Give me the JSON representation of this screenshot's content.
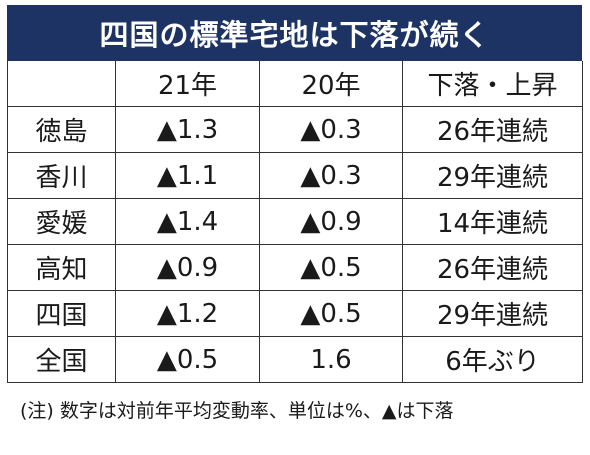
{
  "chart_data": {
    "type": "table",
    "title": "四国の標準宅地は下落が続く",
    "columns": [
      "",
      "21年",
      "20年",
      "下落・上昇"
    ],
    "rows": [
      {
        "region": "徳島",
        "y21": "▲1.3",
        "y20": "▲0.3",
        "trend": "26年連続"
      },
      {
        "region": "香川",
        "y21": "▲1.1",
        "y20": "▲0.3",
        "trend": "29年連続"
      },
      {
        "region": "愛媛",
        "y21": "▲1.4",
        "y20": "▲0.9",
        "trend": "14年連続"
      },
      {
        "region": "高知",
        "y21": "▲0.9",
        "y20": "▲0.5",
        "trend": "26年連続"
      },
      {
        "region": "四国",
        "y21": "▲1.2",
        "y20": "▲0.5",
        "trend": "29年連続"
      },
      {
        "region": "全国",
        "y21": "▲0.5",
        "y20": "1.6",
        "trend": "6年ぶり"
      }
    ],
    "note": "(注) 数字は対前年平均変動率、単位は%、▲は下落"
  },
  "colors": {
    "title_bg": "#1c3364",
    "title_fg": "#ffffff",
    "border": "#333333"
  }
}
